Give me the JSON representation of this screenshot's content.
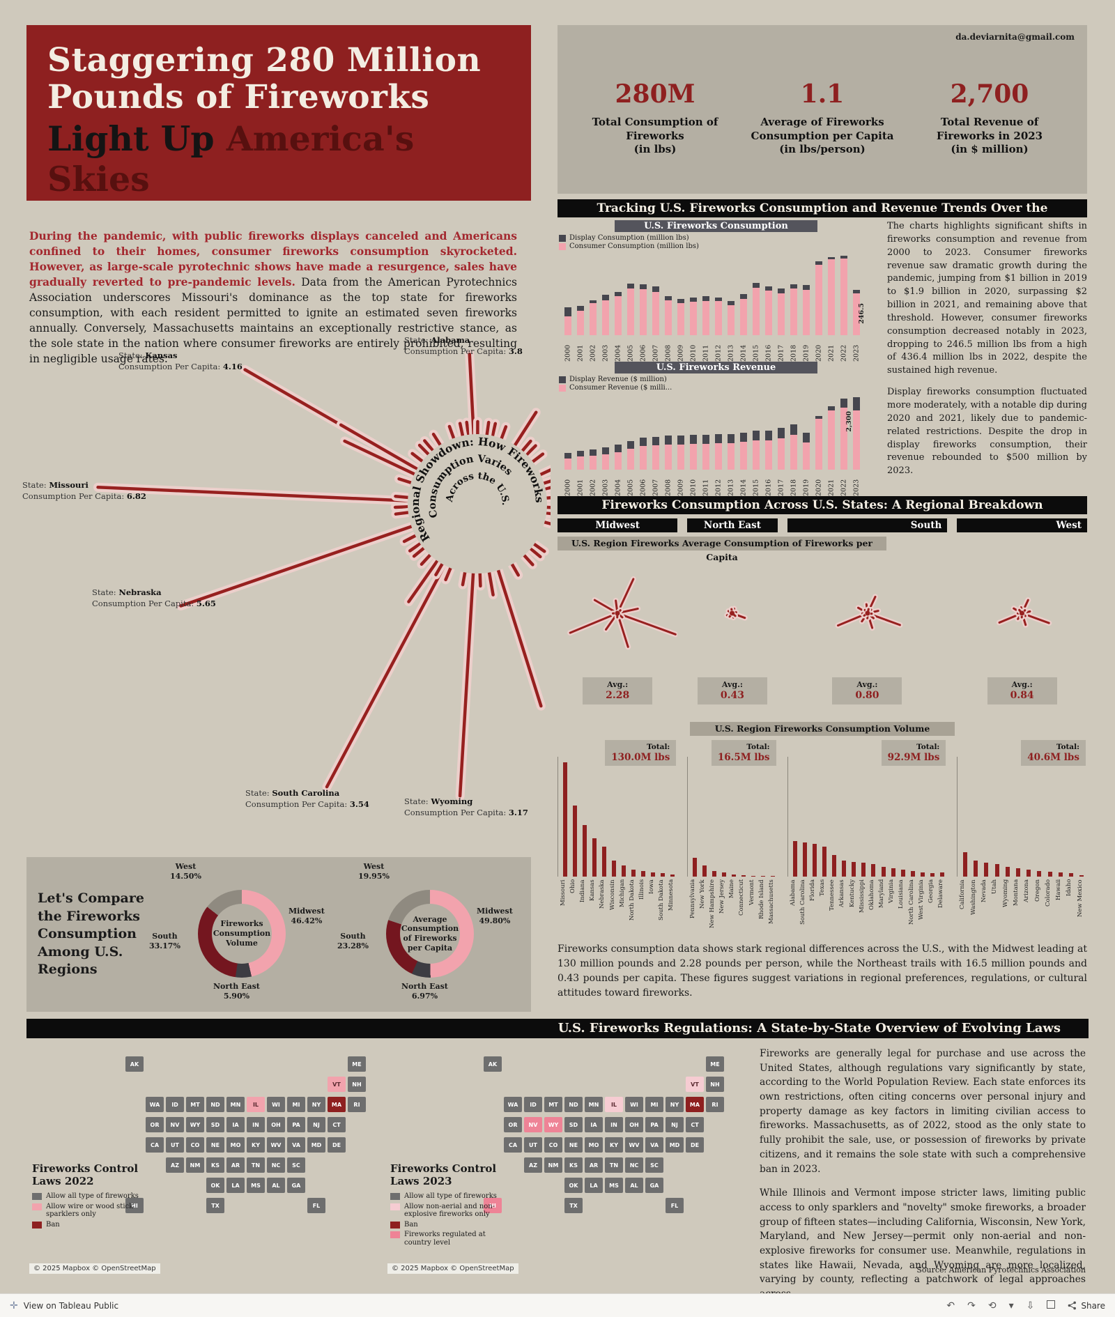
{
  "header": {
    "title_line1": "Staggering 280 Million",
    "title_line2": "Pounds of Fireworks",
    "title_line3_black": "Light Up",
    "title_line3_red": "America's Skies",
    "email": "da.deviarnita@gmail.com",
    "stats": [
      {
        "value": "280M",
        "label_lines": [
          "Total Consumption of",
          "Fireworks",
          "(in lbs)"
        ]
      },
      {
        "value": "1.1",
        "label_lines": [
          "Average of Fireworks",
          "Consumption per Capita",
          "(in lbs/person)"
        ]
      },
      {
        "value": "2,700",
        "label_lines": [
          "Total Revenue of",
          "Fireworks in 2023",
          "(in $ million)"
        ]
      }
    ]
  },
  "intro": {
    "highlight": "During the pandemic, with public fireworks displays canceled and Americans confined to their homes, consumer fireworks consumption skyrocketed. However, as large-scale pyrotechnic shows have made a resurgence, sales have gradually reverted to pre-pandemic levels.",
    "body": "Data from the American Pyrotechnics Association underscores Missouri's dominance as the top state for fireworks consumption, with each resident permitted to ignite an estimated seven fireworks annually. Conversely, Massachusetts maintains an exceptionally restrictive stance, as the sole state in the nation where consumer fireworks are entirely prohibited, resulting in negligible usage rates."
  },
  "trends": {
    "section_title": "Tracking U.S. Fireworks Consumption and Revenue Trends Over the",
    "paragraph1": "The charts highlights significant shifts in fireworks consumption and revenue from 2000 to 2023. Consumer fireworks revenue saw dramatic growth during the pandemic, jumping from $1 billion in 2019 to $1.9 billion in 2020, surpassing $2 billion in 2021, and remaining above that threshold. However, consumer fireworks consumption decreased notably in 2023, dropping to 246.5 million lbs from a high of 436.4 million lbs in 2022, despite the sustained high revenue.",
    "paragraph2": "Display fireworks consumption fluctuated more moderately, with a notable dip during 2020 and 2021, likely due to pandemic-related restrictions. Despite the drop in display fireworks consumption, their revenue rebounded to $500 million by 2023."
  },
  "radial": {
    "callout_state_prefix": "State: ",
    "callout_value_prefix": "Consumption Per Capita: ",
    "center_text": [
      "Regional Showdown: How Fireworks",
      "Consumption Varies",
      "Across the U.S."
    ],
    "callouts": [
      {
        "state": "Alabama",
        "value": "3.8"
      },
      {
        "state": "Kansas",
        "value": "4.16"
      },
      {
        "state": "Missouri",
        "value": "6.82"
      },
      {
        "state": "Nebraska",
        "value": "5.65"
      },
      {
        "state": "South Carolina",
        "value": "3.54"
      },
      {
        "state": "Wyoming",
        "value": "3.17"
      }
    ]
  },
  "regions_section": {
    "section_title": "Fireworks Consumption Across U.S. States: A Regional Breakdown",
    "per_capita_header": "U.S. Region Fireworks Average Consumption of Fireworks per Capita",
    "volume_header": "U.S. Region Fireworks Consumption Volume",
    "avg_prefix": "Avg.:",
    "total_prefix": "Total:",
    "regions": [
      "Midwest",
      "North East",
      "South",
      "West"
    ],
    "paragraph": "Fireworks consumption data shows stark regional differences across the U.S., with the Midwest leading at 130 million pounds and 2.28 pounds per person, while the Northeast trails with 16.5 million pounds and 0.43 pounds per capita. These figures suggest variations in regional preferences, regulations, or cultural attitudes toward fireworks."
  },
  "compare": {
    "title": "Let's Compare the Fireworks Consumption Among U.S. Regions"
  },
  "regulations": {
    "section_title": "U.S. Fireworks Regulations: A State-by-State Overview of Evolving Laws",
    "paragraph1": "Fireworks are generally legal for purchase and use across the United States, although regulations vary significantly by state, according to the World Population Review. Each state enforces its own restrictions, often citing concerns over personal injury and property damage as key factors in limiting civilian access to fireworks. Massachusetts, as of 2022, stood as the only state to fully prohibit the sale, use, or possession of fireworks by private citizens, and it remains the sole state with such a comprehensive ban in 2023.",
    "paragraph2": "While Illinois and Vermont impose stricter laws, limiting public access to only sparklers and \"novelty\" smoke fireworks, a broader group of fifteen states—including California, Wisconsin, New York, Maryland, and New Jersey—permit only non-aerial and non-explosive fireworks for consumer use. Meanwhile, regulations in states like Hawaii, Nevada, and Wyoming are more localized, varying by county, reflecting a patchwork of legal approaches across",
    "source": "Source: American Pyrotechnics Association",
    "maps": [
      {
        "title": "Fireworks Control Laws 2022",
        "attribution": "© 2025 Mapbox  © OpenStreetMap",
        "legend": [
          {
            "label": "Allow all type of fireworks",
            "color": "#6e6e6e"
          },
          {
            "label": "Allow wire or wood stick sparklers only",
            "color": "#f2a3ad"
          },
          {
            "label": "Ban",
            "color": "#8e2020"
          }
        ],
        "state_categories": {
          "MA": 2,
          "IL": 1,
          "VT": 1
        }
      },
      {
        "title": "Fireworks Control Laws 2023",
        "attribution": "© 2025 Mapbox  © OpenStreetMap",
        "legend": [
          {
            "label": "Allow all type of fireworks",
            "color": "#6e6e6e"
          },
          {
            "label": "Allow non-aerial and non-explosive fireworks only",
            "color": "#f6ccd2"
          },
          {
            "label": "Ban",
            "color": "#8e2020"
          },
          {
            "label": "Fireworks regulated at country level",
            "color": "#ee8396"
          }
        ],
        "state_categories": {
          "MA": 2,
          "IL": 1,
          "VT": 1,
          "HI": 3,
          "NV": 3,
          "WY": 3
        }
      }
    ]
  },
  "tableau": {
    "view_label": "View on Tableau Public",
    "share_label": "Share"
  },
  "chart_data": [
    {
      "id": "consumption",
      "type": "bar",
      "stacked": true,
      "title": "U.S. Fireworks Consumption",
      "ylabel": "million lbs",
      "ylim": [
        0,
        450
      ],
      "categories": [
        "2000",
        "2001",
        "2002",
        "2003",
        "2004",
        "2005",
        "2006",
        "2007",
        "2008",
        "2009",
        "2010",
        "2011",
        "2012",
        "2013",
        "2014",
        "2015",
        "2016",
        "2017",
        "2018",
        "2019",
        "2020",
        "2021",
        "2022",
        "2023"
      ],
      "series": [
        {
          "name": "Display Consumption (million lbs)",
          "color": "#46464e",
          "values": [
            51,
            29,
            15,
            31,
            24,
            26,
            26,
            28,
            24,
            23,
            24,
            26,
            21,
            22,
            25,
            25,
            24,
            24,
            23,
            24,
            18,
            12,
            18,
            19.5
          ]
        },
        {
          "name": "Consumer Consumption (million lbs)",
          "color": "#f2a3ad",
          "values": [
            102,
            132,
            175,
            190,
            212,
            255,
            252,
            238,
            189,
            174,
            182,
            186,
            186,
            164,
            200,
            261,
            244,
            230,
            254,
            249,
            386,
            416,
            418,
            227
          ]
        }
      ],
      "annotation": {
        "x": "2023",
        "text": "246.5"
      }
    },
    {
      "id": "revenue",
      "type": "bar",
      "stacked": true,
      "title": "U.S. Fireworks Revenue",
      "ylabel": "$ million",
      "ylim": [
        0,
        2800
      ],
      "categories": [
        "2000",
        "2001",
        "2002",
        "2003",
        "2004",
        "2005",
        "2006",
        "2007",
        "2008",
        "2009",
        "2010",
        "2011",
        "2012",
        "2013",
        "2014",
        "2015",
        "2016",
        "2017",
        "2018",
        "2019",
        "2020",
        "2021",
        "2022",
        "2023"
      ],
      "series": [
        {
          "name": "Display Revenue ($ million)",
          "color": "#46464e",
          "values": [
            203,
            218,
            225,
            250,
            270,
            300,
            320,
            330,
            340,
            335,
            338,
            340,
            343,
            345,
            350,
            360,
            365,
            370,
            375,
            375,
            100,
            150,
            350,
            500
          ]
        },
        {
          "name": "Consumer Revenue ($ milli...",
          "color": "#f2a3ad",
          "values": [
            407,
            482,
            525,
            575,
            655,
            775,
            870,
            900,
            940,
            925,
            952,
            965,
            977,
            990,
            1035,
            1090,
            1100,
            1180,
            1300,
            1000,
            1900,
            2200,
            2300,
            2200
          ]
        }
      ],
      "annotation": {
        "x": "2022",
        "text": "2,300"
      }
    },
    {
      "id": "per-capita-burst",
      "type": "radial-burst",
      "unit": "lbs/person",
      "states": [
        {
          "state": "Missouri",
          "region": "Midwest",
          "value": 6.82
        },
        {
          "state": "Nebraska",
          "region": "Midwest",
          "value": 5.65
        },
        {
          "state": "Kansas",
          "region": "Midwest",
          "value": 4.16
        },
        {
          "state": "North Dakota",
          "region": "Midwest",
          "value": 3.9
        },
        {
          "state": "Indiana",
          "region": "Midwest",
          "value": 2.9
        },
        {
          "state": "South Dakota",
          "region": "Midwest",
          "value": 2.3
        },
        {
          "state": "Ohio",
          "region": "Midwest",
          "value": 2.2
        },
        {
          "state": "Wisconsin",
          "region": "Midwest",
          "value": 1.4
        },
        {
          "state": "Iowa",
          "region": "Midwest",
          "value": 0.7
        },
        {
          "state": "Michigan",
          "region": "Midwest",
          "value": 0.5
        },
        {
          "state": "Minnesota",
          "region": "Midwest",
          "value": 0.3
        },
        {
          "state": "Illinois",
          "region": "Midwest",
          "value": 0.2
        },
        {
          "state": "New Hampshire",
          "region": "North East",
          "value": 1.5
        },
        {
          "state": "Maine",
          "region": "North East",
          "value": 0.6
        },
        {
          "state": "Pennsylvania",
          "region": "North East",
          "value": 0.55
        },
        {
          "state": "Vermont",
          "region": "North East",
          "value": 0.5
        },
        {
          "state": "Rhode Island",
          "region": "North East",
          "value": 0.23
        },
        {
          "state": "New York",
          "region": "North East",
          "value": 0.2
        },
        {
          "state": "New Jersey",
          "region": "North East",
          "value": 0.17
        },
        {
          "state": "Connecticut",
          "region": "North East",
          "value": 0.14
        },
        {
          "state": "Massachusetts",
          "region": "North East",
          "value": 0.02
        },
        {
          "state": "Alabama",
          "region": "South",
          "value": 3.8
        },
        {
          "state": "South Carolina",
          "region": "South",
          "value": 3.54
        },
        {
          "state": "Arkansas",
          "region": "South",
          "value": 2.0
        },
        {
          "state": "Mississippi",
          "region": "South",
          "value": 1.7
        },
        {
          "state": "Tennessee",
          "region": "South",
          "value": 1.2
        },
        {
          "state": "Kentucky",
          "region": "South",
          "value": 1.2
        },
        {
          "state": "Oklahoma",
          "region": "South",
          "value": 1.1
        },
        {
          "state": "Delaware",
          "region": "South",
          "value": 1.0
        },
        {
          "state": "West Virginia",
          "region": "South",
          "value": 0.85
        },
        {
          "state": "Maryland",
          "region": "South",
          "value": 0.58
        },
        {
          "state": "Florida",
          "region": "South",
          "value": 0.55
        },
        {
          "state": "Louisiana",
          "region": "South",
          "value": 0.55
        },
        {
          "state": "Texas",
          "region": "South",
          "value": 0.37
        },
        {
          "state": "Virginia",
          "region": "South",
          "value": 0.35
        },
        {
          "state": "North Carolina",
          "region": "South",
          "value": 0.2
        },
        {
          "state": "Georgia",
          "region": "South",
          "value": 0.11
        },
        {
          "state": "Wyoming",
          "region": "West",
          "value": 3.17
        },
        {
          "state": "Montana",
          "region": "West",
          "value": 2.7
        },
        {
          "state": "Nevada",
          "region": "West",
          "value": 1.6
        },
        {
          "state": "Utah",
          "region": "West",
          "value": 1.35
        },
        {
          "state": "Hawaii",
          "region": "West",
          "value": 1.05
        },
        {
          "state": "Alaska",
          "region": "West",
          "value": 0.9
        },
        {
          "state": "Washington",
          "region": "West",
          "value": 0.78
        },
        {
          "state": "Idaho",
          "region": "West",
          "value": 0.65
        },
        {
          "state": "Oregon",
          "region": "West",
          "value": 0.48
        },
        {
          "state": "Arizona",
          "region": "West",
          "value": 0.35
        },
        {
          "state": "Colorado",
          "region": "West",
          "value": 0.31
        },
        {
          "state": "New Mexico",
          "region": "West",
          "value": 0.28
        },
        {
          "state": "California",
          "region": "West",
          "value": 0.23
        }
      ]
    },
    {
      "id": "region-average",
      "type": "stat",
      "values": [
        {
          "region": "Midwest",
          "avg": "2.28"
        },
        {
          "region": "North East",
          "avg": "0.43"
        },
        {
          "region": "South",
          "avg": "0.80"
        },
        {
          "region": "West",
          "avg": "0.84"
        }
      ]
    },
    {
      "id": "volume",
      "type": "bar-groups",
      "unit": "M lbs",
      "groups": [
        {
          "region": "Midwest",
          "total": "130.0M lbs",
          "states": [
            "Missouri",
            "Ohio",
            "Indiana",
            "Kansas",
            "Nebraska",
            "Wisconsin",
            "Michigan",
            "North Dakota",
            "Illinois",
            "Iowa",
            "South Dakota",
            "Minnesota"
          ],
          "values": [
            42,
            26,
            19,
            14,
            11,
            6,
            4,
            2.5,
            2,
            1.5,
            1.2,
            0.8
          ]
        },
        {
          "region": "North East",
          "total": "16.5M lbs",
          "states": [
            "Pennsylvania",
            "New York",
            "New Hampshire",
            "New Jersey",
            "Maine",
            "Connecticut",
            "Vermont",
            "Rhode Island",
            "Massachusetts"
          ],
          "values": [
            7,
            4,
            2,
            1.5,
            0.8,
            0.5,
            0.3,
            0.25,
            0.15
          ]
        },
        {
          "region": "South",
          "total": "92.9M lbs",
          "states": [
            "Alabama",
            "South Carolina",
            "Florida",
            "Texas",
            "Tennessee",
            "Arkansas",
            "Kentucky",
            "Mississippi",
            "Oklahoma",
            "Maryland",
            "Virginia",
            "Louisiana",
            "North Carolina",
            "West Virginia",
            "Georgia",
            "Delaware"
          ],
          "values": [
            13,
            12.5,
            12,
            11,
            8,
            6,
            5.5,
            5,
            4.5,
            3.5,
            3,
            2.5,
            2,
            1.6,
            1.3,
            1.5
          ]
        },
        {
          "region": "West",
          "total": "40.6M lbs",
          "states": [
            "California",
            "Washington",
            "Nevada",
            "Utah",
            "Wyoming",
            "Montana",
            "Arizona",
            "Oregon",
            "Colorado",
            "Hawaii",
            "Idaho",
            "New Mexico"
          ],
          "values": [
            9,
            6,
            5,
            4.5,
            3.5,
            3,
            2.5,
            2,
            1.8,
            1.5,
            1.2,
            0.6
          ]
        }
      ]
    },
    {
      "id": "share-volume",
      "type": "pie",
      "title_center": "Fireworks Consumption Volume",
      "slices": [
        {
          "label": "Midwest",
          "pct": 46.42,
          "color": "#f2a3ad"
        },
        {
          "label": "North East",
          "pct": 5.9,
          "color": "#3c3c42"
        },
        {
          "label": "South",
          "pct": 33.17,
          "color": "#74161f"
        },
        {
          "label": "West",
          "pct": 14.5,
          "color": "#8f8a80"
        }
      ]
    },
    {
      "id": "share-per-capita",
      "type": "pie",
      "title_center": "Average Consumption of Fireworks per Capita",
      "slices": [
        {
          "label": "Midwest",
          "pct": 49.8,
          "color": "#f2a3ad"
        },
        {
          "label": "North East",
          "pct": 6.97,
          "color": "#3c3c42"
        },
        {
          "label": "South",
          "pct": 23.28,
          "color": "#74161f"
        },
        {
          "label": "West",
          "pct": 19.95,
          "color": "#8f8a80"
        }
      ]
    }
  ]
}
